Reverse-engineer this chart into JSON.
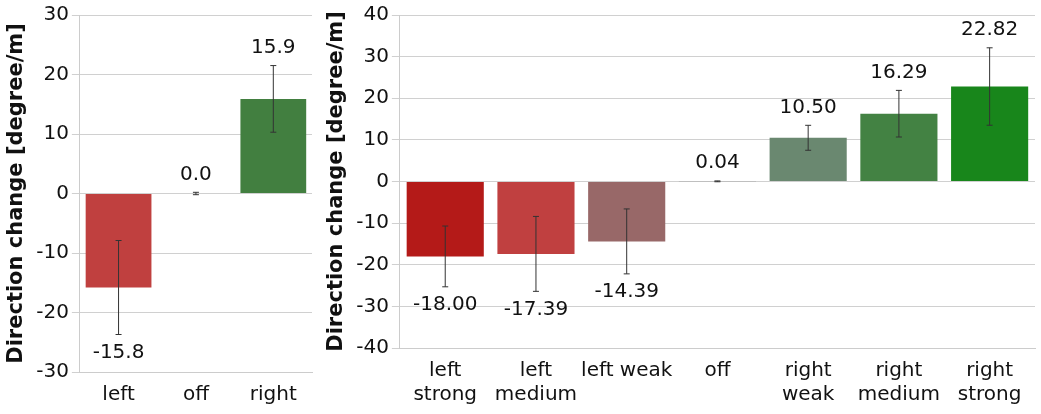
{
  "chart_data": [
    {
      "type": "bar",
      "ylabel": "Direction change [degree/m]",
      "categories": [
        "left",
        "off",
        "right"
      ],
      "values": [
        -15.8,
        0.0,
        15.9
      ],
      "colors": [
        "#c0403f",
        "#8a8a8a",
        "#427f40"
      ],
      "errors": [
        7.9,
        0.2,
        5.6
      ],
      "value_labels": [
        "-15.8",
        "0.0",
        "15.9"
      ],
      "ylim": [
        -30,
        30
      ],
      "yticks": [
        -30,
        -20,
        -10,
        0,
        10,
        20,
        30
      ],
      "grid": "y",
      "legend": false
    },
    {
      "type": "bar",
      "ylabel": "Direction change [degree/m]",
      "categories": [
        "left strong",
        "left medium",
        "left weak",
        "off",
        "right weak",
        "right medium",
        "right strong"
      ],
      "values": [
        -18.0,
        -17.39,
        -14.39,
        0.04,
        10.5,
        16.29,
        22.82
      ],
      "colors": [
        "#b41a18",
        "#c04040",
        "#986868",
        "#8a8a8a",
        "#6a8870",
        "#438243",
        "#18861b"
      ],
      "errors": [
        7.3,
        9.0,
        7.8,
        0.1,
        3.0,
        5.6,
        9.3
      ],
      "value_labels": [
        "-18.00",
        "-17.39",
        "-14.39",
        "0.04",
        "10.50",
        "16.29",
        "22.82"
      ],
      "ylim": [
        -40,
        40
      ],
      "yticks": [
        -40,
        -30,
        -20,
        -10,
        0,
        10,
        20,
        30,
        40
      ],
      "grid": "y",
      "legend": false
    }
  ]
}
